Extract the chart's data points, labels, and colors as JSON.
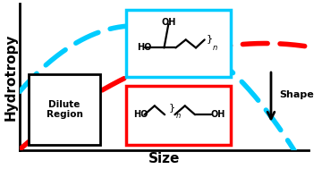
{
  "bg_color": "#ffffff",
  "cyan_color": "#00CCFF",
  "red_color": "#FF0000",
  "black_color": "#000000",
  "xlabel": "Size",
  "ylabel": "Hydrotropy",
  "dilute_label": "Dilute\nRegion",
  "shape_label": "Shape",
  "xlim": [
    0,
    10
  ],
  "ylim": [
    0,
    10
  ],
  "figsize": [
    3.6,
    1.89
  ],
  "dpi": 100
}
